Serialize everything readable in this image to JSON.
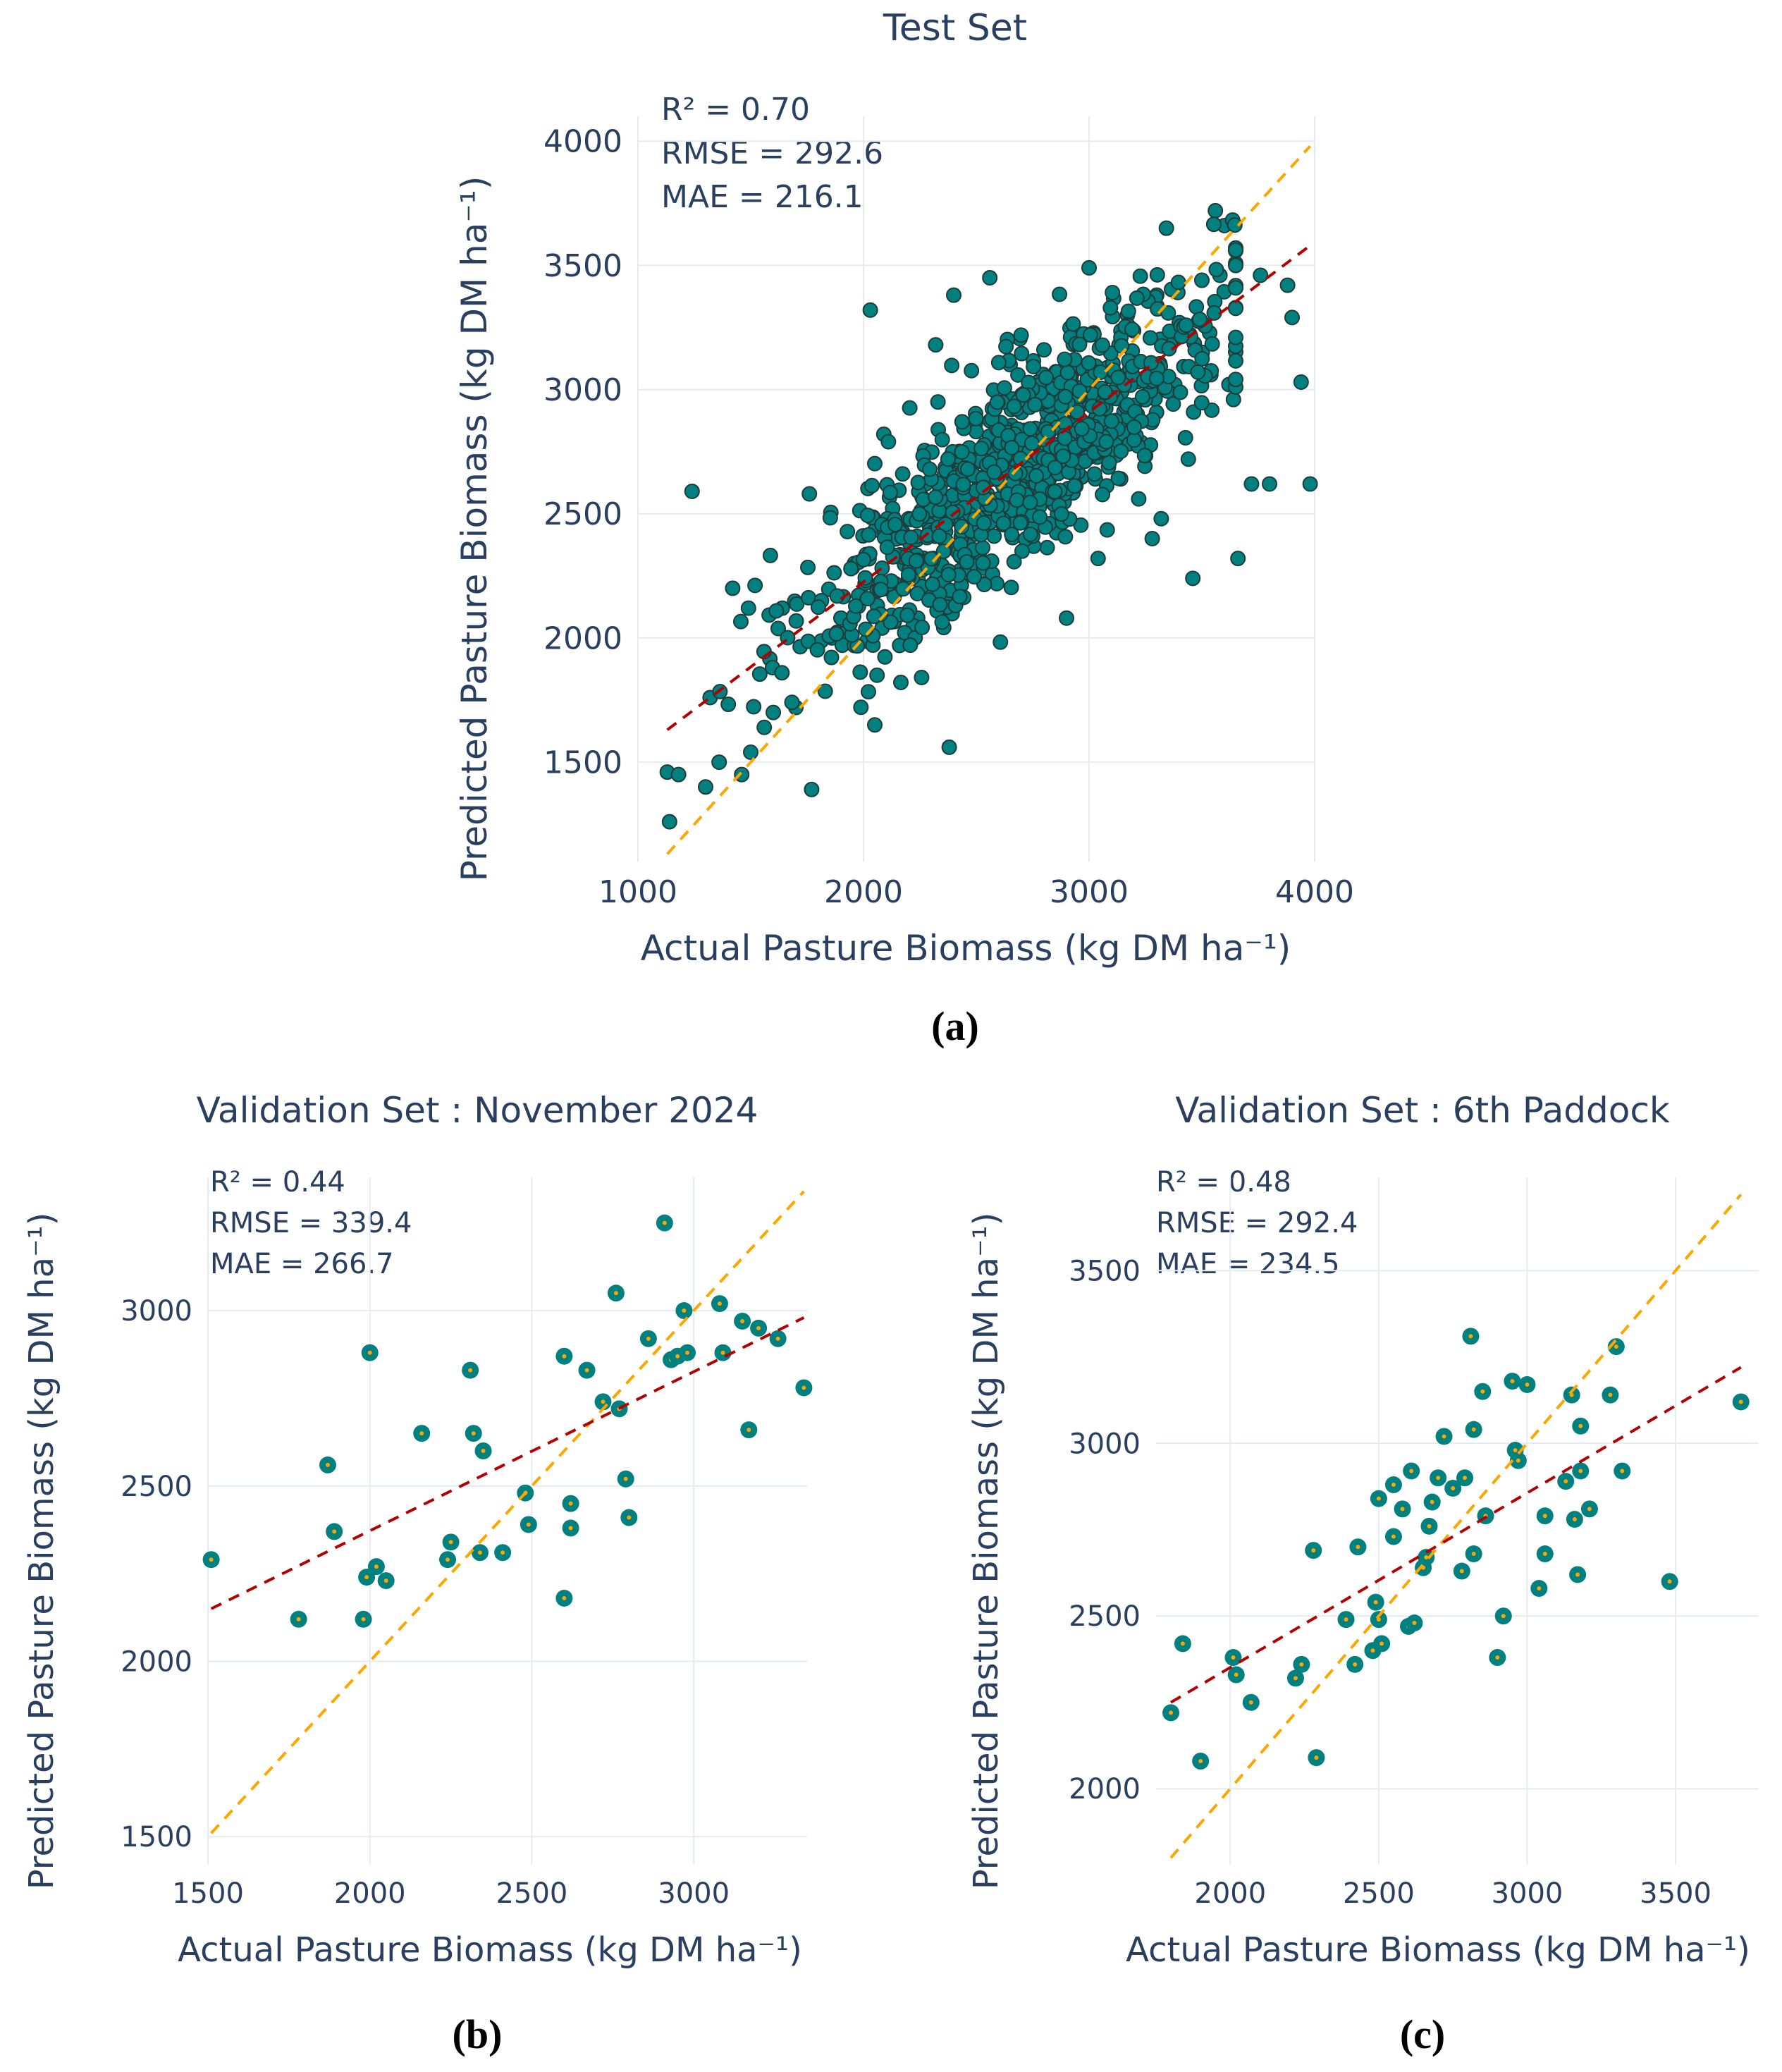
{
  "colors": {
    "point_fill": "#00807f",
    "point_stroke": "#1f3b3b",
    "identity_line": "#ffa500",
    "regression_line": "#b30000",
    "validation_point_center": "#ffa500",
    "text": "#2a3f5f",
    "grid": "#e6ebf2"
  },
  "chart_data": [
    {
      "id": "a",
      "type": "scatter",
      "panel_label": "(a)",
      "title": "Test Set",
      "xlabel": "Actual Pasture Biomass (kg DM ha⁻¹)",
      "ylabel": "Predicted Pasture Biomass (kg DM ha⁻¹)",
      "xlim": [
        1000,
        4000
      ],
      "ylim": [
        1100,
        4100
      ],
      "xticks": [
        1000,
        2000,
        3000,
        4000
      ],
      "yticks": [
        1500,
        2000,
        2500,
        3000,
        3500,
        4000
      ],
      "grid": true,
      "metrics": [
        "R² = 0.70",
        "RMSE = 292.6",
        "MAE = 216.1"
      ],
      "identity_line": {
        "x": [
          1130,
          3980
        ],
        "y": [
          1130,
          3980
        ]
      },
      "regression_line": {
        "x": [
          1130,
          3980
        ],
        "y": [
          1630,
          3580
        ]
      },
      "n_points": 1000,
      "points": [
        [
          1130,
          1460
        ],
        [
          1180,
          1450
        ],
        [
          1140,
          1260
        ],
        [
          1240,
          2590
        ],
        [
          1320,
          1760
        ],
        [
          1300,
          1400
        ],
        [
          1360,
          1500
        ],
        [
          1420,
          2200
        ],
        [
          1460,
          1450
        ],
        [
          1490,
          2120
        ],
        [
          1500,
          1540
        ],
        [
          1560,
          1640
        ],
        [
          1600,
          1700
        ],
        [
          1640,
          2120
        ],
        [
          1700,
          1720
        ],
        [
          1770,
          1390
        ],
        [
          1760,
          2580
        ],
        [
          1860,
          2000
        ],
        [
          1900,
          2080
        ],
        [
          1960,
          2300
        ],
        [
          2030,
          3320
        ],
        [
          2050,
          1650
        ],
        [
          2060,
          1850
        ],
        [
          2090,
          2820
        ],
        [
          2160,
          1970
        ],
        [
          2200,
          2480
        ],
        [
          2240,
          2080
        ],
        [
          2320,
          3180
        ],
        [
          2330,
          2950
        ],
        [
          2380,
          1560
        ],
        [
          2400,
          3380
        ],
        [
          2440,
          2400
        ],
        [
          2480,
          2740
        ],
        [
          2560,
          3450
        ],
        [
          2600,
          2560
        ],
        [
          2650,
          3100
        ],
        [
          2700,
          2650
        ],
        [
          2760,
          2780
        ],
        [
          2800,
          3160
        ],
        [
          2860,
          2500
        ],
        [
          2900,
          2080
        ],
        [
          2960,
          3200
        ],
        [
          3000,
          3490
        ],
        [
          3040,
          2320
        ],
        [
          3060,
          2900
        ],
        [
          3100,
          3050
        ],
        [
          3140,
          2640
        ],
        [
          3170,
          3300
        ],
        [
          3220,
          2560
        ],
        [
          3280,
          2400
        ],
        [
          3300,
          3380
        ],
        [
          3320,
          2480
        ],
        [
          3360,
          3180
        ],
        [
          3380,
          3020
        ],
        [
          3440,
          2720
        ],
        [
          3460,
          2240
        ],
        [
          3500,
          3440
        ],
        [
          3540,
          3060
        ],
        [
          3560,
          3720
        ],
        [
          3580,
          3460
        ],
        [
          3600,
          3660
        ],
        [
          3620,
          3020
        ],
        [
          3640,
          2960
        ],
        [
          3660,
          2320
        ],
        [
          3720,
          2620
        ],
        [
          3760,
          3460
        ],
        [
          3800,
          2620
        ],
        [
          3880,
          3420
        ],
        [
          3900,
          3290
        ],
        [
          3940,
          3030
        ],
        [
          3980,
          2620
        ]
      ]
    },
    {
      "id": "b",
      "type": "scatter",
      "panel_label": "(b)",
      "title": "Validation Set : November 2024",
      "xlabel": "Actual Pasture Biomass (kg DM ha⁻¹)",
      "ylabel": "Predicted Pasture Biomass (kg DM ha⁻¹)",
      "xlim": [
        1500,
        3350
      ],
      "ylim": [
        1420,
        3380
      ],
      "xticks": [
        1500,
        2000,
        2500,
        3000
      ],
      "yticks": [
        1500,
        2000,
        2500,
        3000
      ],
      "grid": true,
      "metrics": [
        "R² = 0.44",
        "RMSE = 339.4",
        "MAE = 266.7"
      ],
      "identity_line": {
        "x": [
          1510,
          3340
        ],
        "y": [
          1510,
          3340
        ]
      },
      "regression_line": {
        "x": [
          1510,
          3340
        ],
        "y": [
          2150,
          2980
        ]
      },
      "points": [
        [
          1510,
          2290
        ],
        [
          1780,
          2120
        ],
        [
          1870,
          2560
        ],
        [
          1890,
          2370
        ],
        [
          1980,
          2120
        ],
        [
          1990,
          2240
        ],
        [
          2000,
          2880
        ],
        [
          2020,
          2270
        ],
        [
          2050,
          2230
        ],
        [
          2160,
          2650
        ],
        [
          2240,
          2290
        ],
        [
          2250,
          2340
        ],
        [
          2310,
          2830
        ],
        [
          2320,
          2650
        ],
        [
          2340,
          2310
        ],
        [
          2350,
          2600
        ],
        [
          2410,
          2310
        ],
        [
          2480,
          2480
        ],
        [
          2490,
          2390
        ],
        [
          2600,
          2870
        ],
        [
          2600,
          2180
        ],
        [
          2620,
          2450
        ],
        [
          2620,
          2380
        ],
        [
          2670,
          2830
        ],
        [
          2720,
          2740
        ],
        [
          2760,
          3050
        ],
        [
          2770,
          2720
        ],
        [
          2790,
          2520
        ],
        [
          2800,
          2410
        ],
        [
          2860,
          2920
        ],
        [
          2910,
          3250
        ],
        [
          2930,
          2860
        ],
        [
          2950,
          2870
        ],
        [
          2970,
          3000
        ],
        [
          2980,
          2880
        ],
        [
          3080,
          3020
        ],
        [
          3090,
          2880
        ],
        [
          3150,
          2970
        ],
        [
          3170,
          2660
        ],
        [
          3200,
          2950
        ],
        [
          3260,
          2920
        ],
        [
          3340,
          2780
        ]
      ]
    },
    {
      "id": "c",
      "type": "scatter",
      "panel_label": "(c)",
      "title": "Validation Set : 6th Paddock",
      "xlabel": "Actual Pasture Biomass (kg DM ha⁻¹)",
      "ylabel": "Predicted Pasture Biomass (kg DM ha⁻¹)",
      "xlim": [
        1750,
        3780
      ],
      "ylim": [
        1780,
        3770
      ],
      "xticks": [
        2000,
        2500,
        3000,
        3500
      ],
      "yticks": [
        2000,
        2500,
        3000,
        3500
      ],
      "grid": true,
      "metrics": [
        "R² = 0.48",
        "RMSE = 292.4",
        "MAE = 234.5"
      ],
      "identity_line": {
        "x": [
          1800,
          3720
        ],
        "y": [
          1800,
          3720
        ]
      },
      "regression_line": {
        "x": [
          1800,
          3720
        ],
        "y": [
          2250,
          3220
        ]
      },
      "points": [
        [
          1800,
          2220
        ],
        [
          1840,
          2420
        ],
        [
          1900,
          2080
        ],
        [
          2010,
          2380
        ],
        [
          2020,
          2330
        ],
        [
          2070,
          2250
        ],
        [
          2220,
          2320
        ],
        [
          2240,
          2360
        ],
        [
          2280,
          2690
        ],
        [
          2290,
          2090
        ],
        [
          2390,
          2490
        ],
        [
          2420,
          2360
        ],
        [
          2430,
          2700
        ],
        [
          2480,
          2400
        ],
        [
          2490,
          2540
        ],
        [
          2500,
          2840
        ],
        [
          2500,
          2490
        ],
        [
          2510,
          2420
        ],
        [
          2550,
          2880
        ],
        [
          2550,
          2730
        ],
        [
          2580,
          2810
        ],
        [
          2600,
          2470
        ],
        [
          2610,
          2920
        ],
        [
          2620,
          2480
        ],
        [
          2650,
          2640
        ],
        [
          2660,
          2670
        ],
        [
          2670,
          2760
        ],
        [
          2680,
          2830
        ],
        [
          2700,
          2900
        ],
        [
          2720,
          3020
        ],
        [
          2750,
          2870
        ],
        [
          2780,
          2630
        ],
        [
          2790,
          2900
        ],
        [
          2810,
          3310
        ],
        [
          2820,
          2680
        ],
        [
          2820,
          3040
        ],
        [
          2850,
          3150
        ],
        [
          2860,
          2790
        ],
        [
          2900,
          2380
        ],
        [
          2920,
          2500
        ],
        [
          2950,
          3180
        ],
        [
          2960,
          2980
        ],
        [
          2970,
          2950
        ],
        [
          3000,
          3170
        ],
        [
          3040,
          2580
        ],
        [
          3060,
          2680
        ],
        [
          3060,
          2790
        ],
        [
          3130,
          2890
        ],
        [
          3150,
          3140
        ],
        [
          3160,
          2780
        ],
        [
          3170,
          2620
        ],
        [
          3180,
          2920
        ],
        [
          3180,
          3050
        ],
        [
          3210,
          2810
        ],
        [
          3280,
          3140
        ],
        [
          3300,
          3280
        ],
        [
          3320,
          2920
        ],
        [
          3480,
          2600
        ],
        [
          3720,
          3120
        ]
      ]
    }
  ]
}
